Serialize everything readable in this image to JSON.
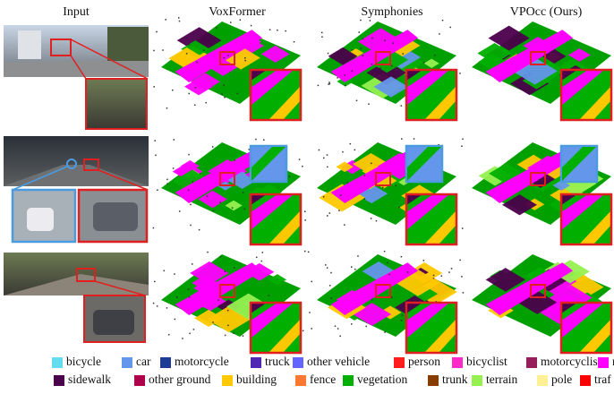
{
  "header": {
    "columns": [
      "Input",
      "VoxFormer",
      "Symphonies",
      "VPOcc (Ours)"
    ]
  },
  "legend": {
    "items": [
      {
        "label": "bicycle",
        "color": "#64dcf0"
      },
      {
        "label": "car",
        "color": "#6496eb"
      },
      {
        "label": "motorcycle",
        "color": "#1e3c96"
      },
      {
        "label": "truck",
        "color": "#5028b4"
      },
      {
        "label": "other vehicle",
        "color": "#6464ff"
      },
      {
        "label": "person",
        "color": "#ff1e1e"
      },
      {
        "label": "bicyclist",
        "color": "#ff28c8"
      },
      {
        "label": "motorcyclist",
        "color": "#961e5a"
      },
      {
        "label": "ro",
        "color": "#ff00ff"
      },
      {
        "label": "sidewalk",
        "color": "#4b004b"
      },
      {
        "label": "other ground",
        "color": "#af004b"
      },
      {
        "label": "building",
        "color": "#ffc800"
      },
      {
        "label": "fence",
        "color": "#ff7832"
      },
      {
        "label": "vegetation",
        "color": "#00af00"
      },
      {
        "label": "trunk",
        "color": "#873c00"
      },
      {
        "label": "terrain",
        "color": "#96f050"
      },
      {
        "label": "pole",
        "color": "#fff096"
      },
      {
        "label": "traf",
        "color": "#ff0000"
      }
    ]
  }
}
